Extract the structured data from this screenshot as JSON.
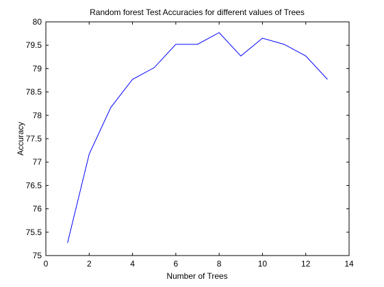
{
  "chart_data": {
    "type": "line",
    "title": "Random forest Test Accuracies for different values of Trees",
    "xlabel": "Number of Trees",
    "ylabel": "Accuracy",
    "xlim": [
      0,
      14
    ],
    "ylim": [
      75,
      80
    ],
    "xticks": [
      0,
      2,
      4,
      6,
      8,
      10,
      12,
      14
    ],
    "yticks": [
      75,
      75.5,
      76,
      76.5,
      77,
      77.5,
      78,
      78.5,
      79,
      79.5,
      80
    ],
    "grid": false,
    "series": [
      {
        "color": "#0000ff",
        "x": [
          1,
          2,
          3,
          4,
          5,
          6,
          7,
          8,
          9,
          10,
          11,
          12,
          13
        ],
        "y": [
          75.27,
          77.17,
          78.17,
          78.77,
          79.02,
          79.52,
          79.52,
          79.77,
          79.27,
          79.65,
          79.52,
          79.27,
          78.77
        ]
      }
    ]
  }
}
